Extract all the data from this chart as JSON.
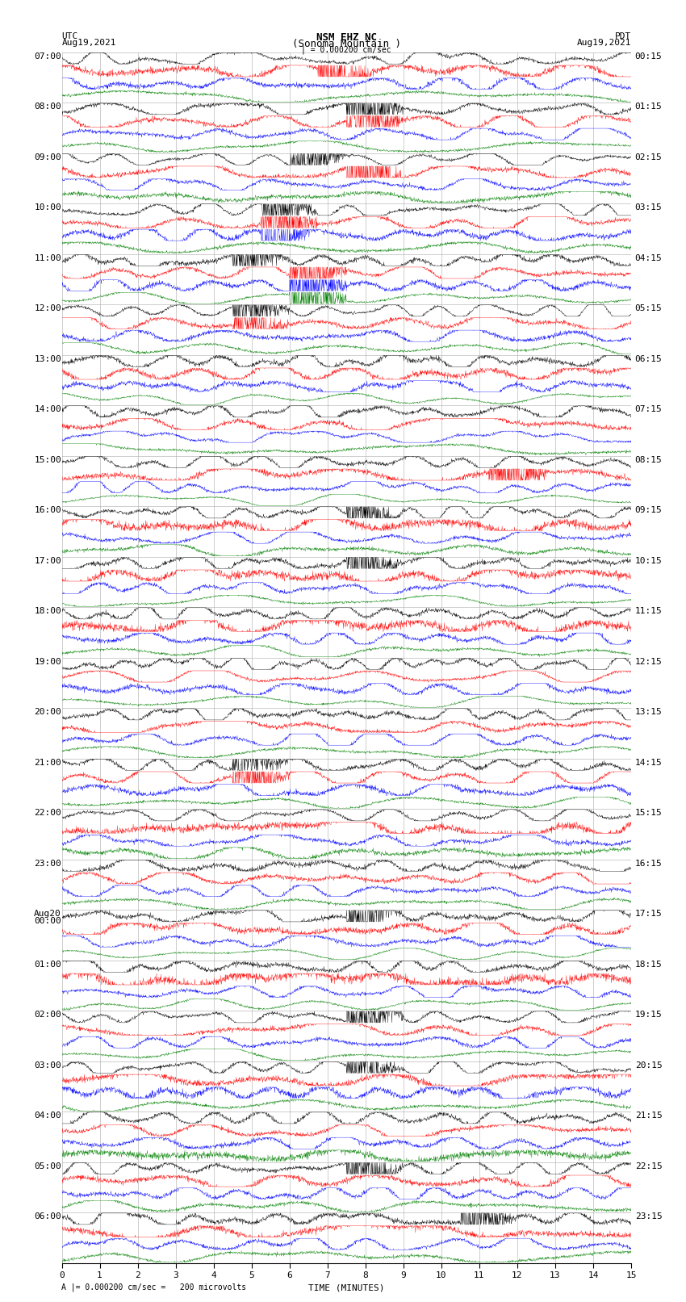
{
  "title_line1": "NSM EHZ NC",
  "title_line2": "(Sonoma Mountain )",
  "scale_label": "| = 0.000200 cm/sec",
  "footer_label": "A |= 0.000200 cm/sec =   200 microvolts",
  "utc_label": "UTC",
  "pdt_label": "PDT",
  "date_left": "Aug19,2021",
  "date_right": "Aug19,2021",
  "xlabel": "TIME (MINUTES)",
  "xmin": 0,
  "xmax": 15,
  "xticks": [
    0,
    1,
    2,
    3,
    4,
    5,
    6,
    7,
    8,
    9,
    10,
    11,
    12,
    13,
    14,
    15
  ],
  "left_times": [
    "07:00",
    "08:00",
    "09:00",
    "10:00",
    "11:00",
    "12:00",
    "13:00",
    "14:00",
    "15:00",
    "16:00",
    "17:00",
    "18:00",
    "19:00",
    "20:00",
    "21:00",
    "22:00",
    "23:00",
    "Aug20\n00:00",
    "01:00",
    "02:00",
    "03:00",
    "04:00",
    "05:00",
    "06:00"
  ],
  "right_times": [
    "00:15",
    "01:15",
    "02:15",
    "03:15",
    "04:15",
    "05:15",
    "06:15",
    "07:15",
    "08:15",
    "09:15",
    "10:15",
    "11:15",
    "12:15",
    "13:15",
    "14:15",
    "15:15",
    "16:15",
    "17:15",
    "18:15",
    "19:15",
    "20:15",
    "21:15",
    "22:15",
    "23:15"
  ],
  "trace_colors": [
    "black",
    "red",
    "blue",
    "green"
  ],
  "n_hours": 24,
  "n_traces_per_hour": 4,
  "n_samples": 2000,
  "fig_width": 8.5,
  "fig_height": 16.13,
  "background_color": "white",
  "trace_linewidth": 0.28,
  "amplitude_scale": 0.38,
  "grid_color": "#aaaaaa",
  "font_size_title": 9,
  "font_size_labels": 8,
  "font_size_ticks": 8,
  "font_size_time": 8
}
